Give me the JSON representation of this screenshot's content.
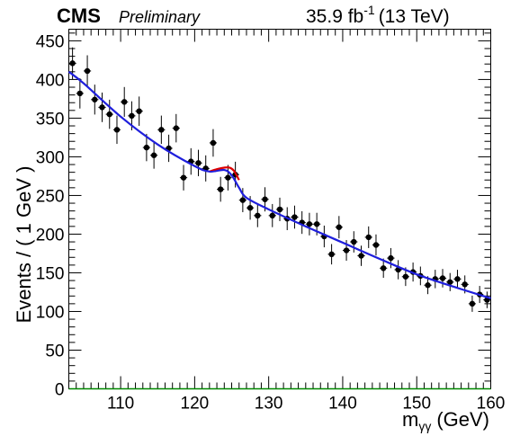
{
  "header": {
    "experiment": "CMS",
    "status": "Preliminary",
    "lumi_value": "35.9 fb",
    "lumi_exp": "-1",
    "energy": "(13 TeV)"
  },
  "chart_data": {
    "type": "scatter",
    "xlabel_main": "m",
    "xlabel_sub": "γγ",
    "xlabel_unit": "(GeV)",
    "ylabel": "Events / ( 1 GeV )",
    "xlim": [
      103,
      160
    ],
    "ylim": [
      0,
      465
    ],
    "xticks": [
      110,
      120,
      130,
      140,
      150,
      160
    ],
    "yticks": [
      0,
      50,
      100,
      150,
      200,
      250,
      300,
      350,
      400,
      450
    ],
    "colors": {
      "data": "#000000",
      "bkg_fit": "#1f1fdc",
      "signal_fit": "#dd0000",
      "baseline": "#008800"
    },
    "series": [
      {
        "kind": "data",
        "x": [
          103.5,
          104.5,
          105.5,
          106.5,
          107.5,
          108.5,
          109.5,
          110.5,
          111.5,
          112.5,
          113.5,
          114.5,
          115.5,
          116.5,
          117.5,
          118.5,
          119.5,
          120.5,
          121.5,
          122.5,
          123.5,
          124.5,
          125.5,
          126.5,
          127.5,
          128.5,
          129.5,
          130.5,
          131.5,
          132.5,
          133.5,
          134.5,
          135.5,
          136.5,
          137.5,
          138.5,
          139.5,
          140.5,
          141.5,
          142.5,
          143.5,
          144.5,
          145.5,
          146.5,
          147.5,
          148.5,
          149.5,
          150.5,
          151.5,
          152.5,
          153.5,
          154.5,
          155.5,
          156.5,
          157.5,
          158.5,
          159.5
        ],
        "y": [
          421,
          382,
          411,
          374,
          364,
          355,
          335,
          371,
          353,
          359,
          312,
          302,
          335,
          311,
          337,
          273,
          294,
          292,
          285,
          318,
          258,
          273,
          277,
          244,
          234,
          224,
          245,
          224,
          232,
          220,
          222,
          215,
          213,
          213,
          197,
          174,
          209,
          179,
          190,
          172,
          196,
          186,
          156,
          169,
          154,
          145,
          151,
          146,
          134,
          142,
          143,
          138,
          142,
          135,
          110,
          122,
          115
        ]
      },
      {
        "kind": "fit",
        "name": "bkg",
        "x": [
          103,
          105,
          110,
          115,
          120,
          122,
          124,
          125,
          126,
          127,
          130,
          135,
          140,
          145,
          150,
          155,
          160
        ],
        "y": [
          410,
          395,
          352,
          316,
          288,
          281,
          283,
          276,
          260,
          247,
          232,
          210,
          189,
          168,
          148,
          132,
          117
        ]
      },
      {
        "kind": "fit",
        "name": "signal",
        "x": [
          122,
          123,
          124,
          124.7,
          125.3,
          126
        ],
        "y": [
          281,
          284,
          286,
          286,
          282,
          270
        ]
      }
    ]
  }
}
